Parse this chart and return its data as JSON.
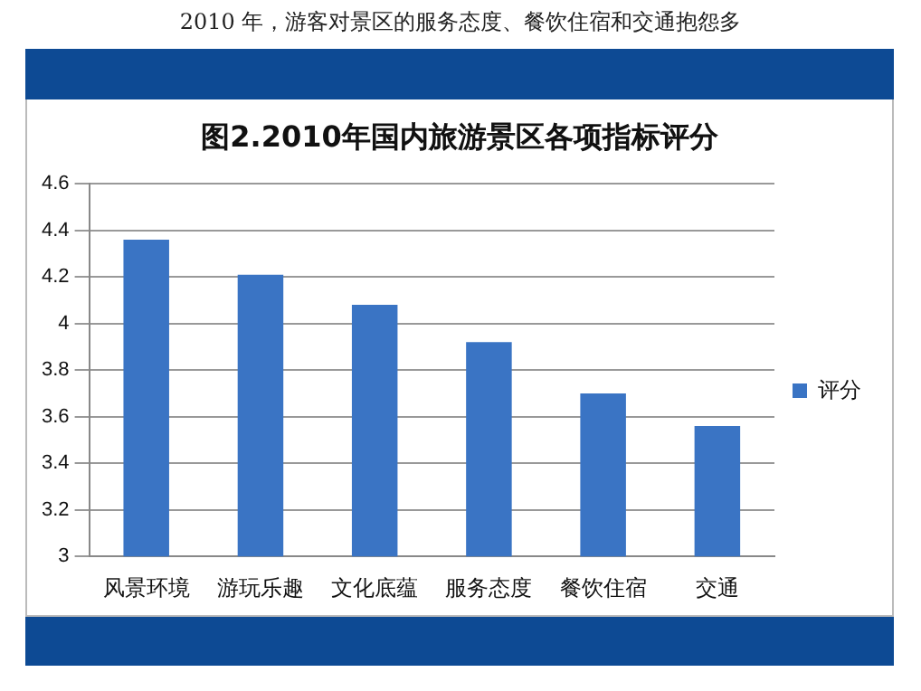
{
  "chart_data": {
    "type": "bar",
    "subtitle": "2010 年，游客对景区的服务态度、餐饮住宿和交通抱怨多",
    "title": "图2.2010年国内旅游景区各项指标评分",
    "categories": [
      "风景环境",
      "游玩乐趣",
      "文化底蕴",
      "服务态度",
      "餐饮住宿",
      "交通"
    ],
    "series": [
      {
        "name": "评分",
        "color": "#3a74c4",
        "values": [
          4.36,
          4.21,
          4.08,
          3.92,
          3.7,
          3.56
        ]
      }
    ],
    "ylim": [
      3,
      4.6
    ],
    "yticks": [
      3,
      3.2,
      3.4,
      3.6,
      3.8,
      4,
      4.2,
      4.4,
      4.6
    ],
    "grid": "y",
    "legend": "right"
  }
}
